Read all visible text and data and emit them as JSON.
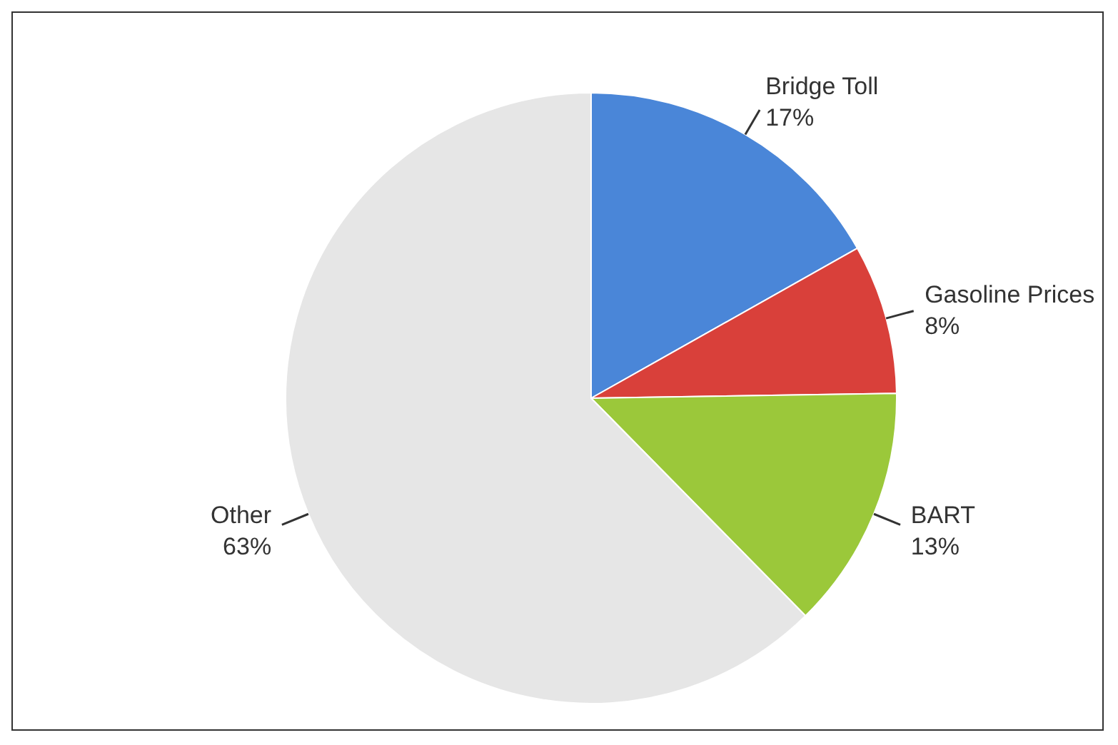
{
  "chart_data": {
    "type": "pie",
    "categories": [
      "Bridge Toll",
      "Gasoline Prices",
      "BART",
      "Other"
    ],
    "values": [
      17,
      8,
      13,
      63
    ],
    "value_labels": [
      "17%",
      "8%",
      "13%",
      "63%"
    ],
    "colors": [
      "#4a86d8",
      "#d9403a",
      "#9bc83a",
      "#e6e6e6"
    ],
    "legend": false
  }
}
